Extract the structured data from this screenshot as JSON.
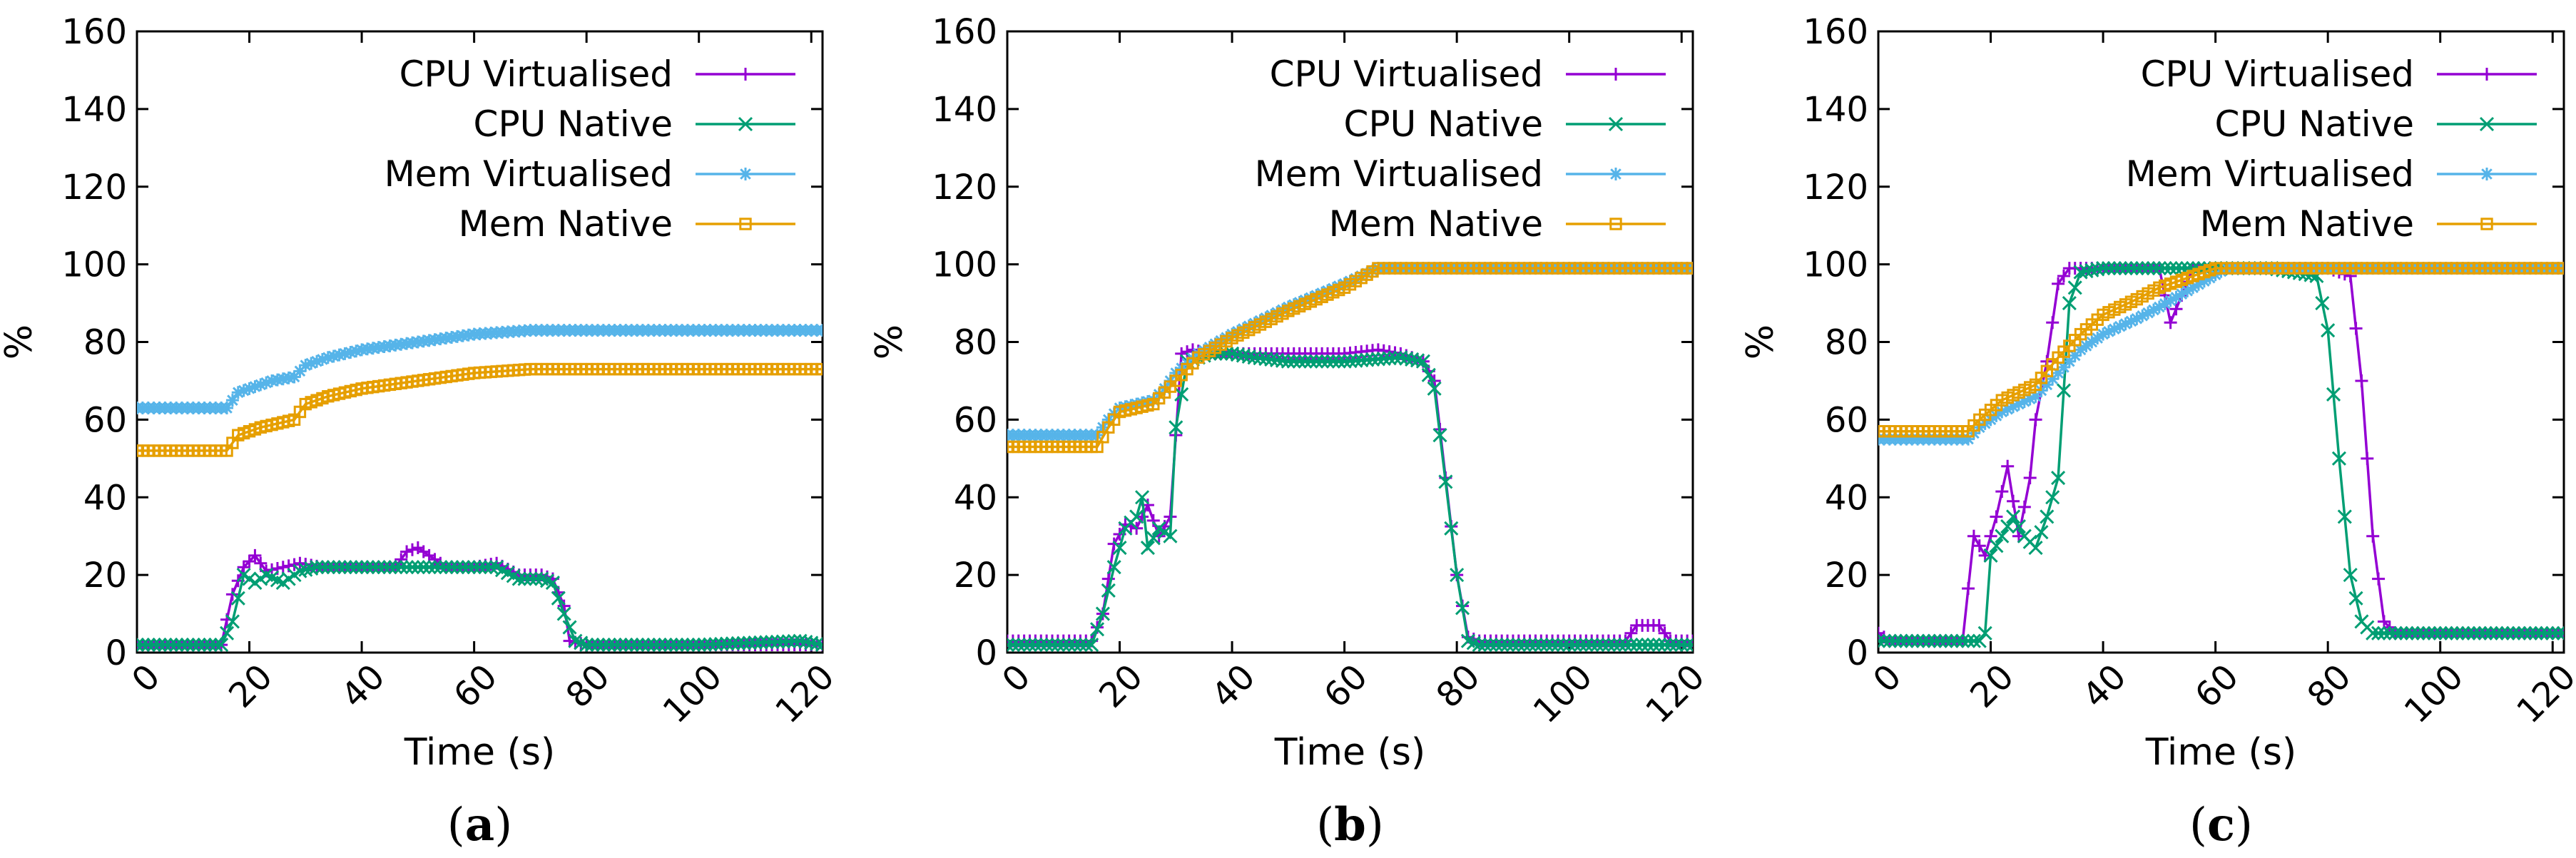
{
  "chart_data": [
    {
      "type": "line",
      "panel_label": "a",
      "xlabel": "Time (s)",
      "ylabel": "%",
      "xlim": [
        0,
        122
      ],
      "ylim": [
        0,
        160
      ],
      "xticks": [
        0,
        20,
        40,
        60,
        80,
        100,
        120
      ],
      "yticks": [
        0,
        20,
        40,
        60,
        80,
        100,
        120,
        140,
        160
      ],
      "legend_position": "top-right",
      "grid": false,
      "series": [
        {
          "name": "CPU Virtualised",
          "color": "#9400d3",
          "marker": "plus",
          "points": [
            [
              0,
              2
            ],
            [
              15,
              2
            ],
            [
              17,
              15
            ],
            [
              19,
              22
            ],
            [
              21,
              25
            ],
            [
              23,
              21
            ],
            [
              26,
              22
            ],
            [
              29,
              23
            ],
            [
              33,
              22
            ],
            [
              40,
              22
            ],
            [
              46,
              22
            ],
            [
              48,
              26
            ],
            [
              50,
              27
            ],
            [
              52,
              25
            ],
            [
              55,
              22
            ],
            [
              60,
              22
            ],
            [
              64,
              23
            ],
            [
              68,
              20
            ],
            [
              72,
              20
            ],
            [
              74,
              19
            ],
            [
              76,
              12
            ],
            [
              77,
              3
            ],
            [
              80,
              2
            ],
            [
              100,
              2
            ],
            [
              122,
              2
            ]
          ]
        },
        {
          "name": "CPU Native",
          "color": "#009e73",
          "marker": "x",
          "points": [
            [
              0,
              2
            ],
            [
              15,
              2
            ],
            [
              17,
              8
            ],
            [
              19,
              20
            ],
            [
              21,
              18
            ],
            [
              23,
              20
            ],
            [
              26,
              18
            ],
            [
              29,
              21
            ],
            [
              32,
              22
            ],
            [
              40,
              22
            ],
            [
              50,
              22
            ],
            [
              60,
              22
            ],
            [
              64,
              22
            ],
            [
              68,
              19
            ],
            [
              72,
              19
            ],
            [
              74,
              18
            ],
            [
              76,
              10
            ],
            [
              78,
              3
            ],
            [
              80,
              2
            ],
            [
              100,
              2
            ],
            [
              118,
              3
            ],
            [
              122,
              2
            ]
          ]
        },
        {
          "name": "Mem Virtualised",
          "color": "#56b4e9",
          "marker": "star",
          "points": [
            [
              0,
              63
            ],
            [
              16,
              63
            ],
            [
              18,
              67
            ],
            [
              24,
              70
            ],
            [
              28,
              71
            ],
            [
              30,
              74
            ],
            [
              34,
              76
            ],
            [
              40,
              78
            ],
            [
              50,
              80
            ],
            [
              60,
              82
            ],
            [
              70,
              83
            ],
            [
              80,
              83
            ],
            [
              100,
              83
            ],
            [
              122,
              83
            ]
          ]
        },
        {
          "name": "Mem Native",
          "color": "#e69f00",
          "marker": "square",
          "points": [
            [
              0,
              52
            ],
            [
              16,
              52
            ],
            [
              18,
              56
            ],
            [
              22,
              58
            ],
            [
              28,
              60
            ],
            [
              30,
              64
            ],
            [
              34,
              66
            ],
            [
              40,
              68
            ],
            [
              50,
              70
            ],
            [
              60,
              72
            ],
            [
              70,
              73
            ],
            [
              80,
              73
            ],
            [
              100,
              73
            ],
            [
              122,
              73
            ]
          ]
        }
      ]
    },
    {
      "type": "line",
      "panel_label": "b",
      "xlabel": "Time (s)",
      "ylabel": "%",
      "xlim": [
        0,
        122
      ],
      "ylim": [
        0,
        160
      ],
      "xticks": [
        0,
        20,
        40,
        60,
        80,
        100,
        120
      ],
      "yticks": [
        0,
        20,
        40,
        60,
        80,
        100,
        120,
        140,
        160
      ],
      "legend_position": "top-right",
      "grid": false,
      "series": [
        {
          "name": "CPU Virtualised",
          "color": "#9400d3",
          "marker": "plus",
          "points": [
            [
              0,
              3
            ],
            [
              15,
              3
            ],
            [
              17,
              10
            ],
            [
              19,
              28
            ],
            [
              21,
              33
            ],
            [
              23,
              32
            ],
            [
              25,
              38
            ],
            [
              27,
              30
            ],
            [
              29,
              35
            ],
            [
              31,
              77
            ],
            [
              33,
              78
            ],
            [
              36,
              77
            ],
            [
              40,
              77
            ],
            [
              50,
              77
            ],
            [
              60,
              77
            ],
            [
              66,
              78
            ],
            [
              70,
              77
            ],
            [
              74,
              75
            ],
            [
              76,
              70
            ],
            [
              78,
              45
            ],
            [
              80,
              20
            ],
            [
              82,
              4
            ],
            [
              84,
              3
            ],
            [
              110,
              3
            ],
            [
              112,
              7
            ],
            [
              116,
              7
            ],
            [
              118,
              3
            ],
            [
              122,
              3
            ]
          ]
        },
        {
          "name": "CPU Native",
          "color": "#009e73",
          "marker": "x",
          "points": [
            [
              0,
              2
            ],
            [
              15,
              2
            ],
            [
              17,
              10
            ],
            [
              19,
              22
            ],
            [
              21,
              32
            ],
            [
              23,
              35
            ],
            [
              24,
              40
            ],
            [
              25,
              27
            ],
            [
              27,
              32
            ],
            [
              29,
              30
            ],
            [
              30,
              58
            ],
            [
              32,
              75
            ],
            [
              36,
              77
            ],
            [
              40,
              77
            ],
            [
              44,
              76
            ],
            [
              50,
              75
            ],
            [
              60,
              75
            ],
            [
              70,
              76
            ],
            [
              74,
              75
            ],
            [
              76,
              68
            ],
            [
              78,
              44
            ],
            [
              80,
              20
            ],
            [
              82,
              3
            ],
            [
              84,
              2
            ],
            [
              100,
              2
            ],
            [
              122,
              2
            ]
          ]
        },
        {
          "name": "Mem Virtualised",
          "color": "#56b4e9",
          "marker": "star",
          "points": [
            [
              0,
              56
            ],
            [
              16,
              56
            ],
            [
              18,
              60
            ],
            [
              20,
              63
            ],
            [
              26,
              65
            ],
            [
              28,
              68
            ],
            [
              30,
              72
            ],
            [
              34,
              77
            ],
            [
              40,
              82
            ],
            [
              50,
              89
            ],
            [
              60,
              95
            ],
            [
              66,
              99
            ],
            [
              70,
              99
            ],
            [
              80,
              99
            ],
            [
              100,
              99
            ],
            [
              122,
              99
            ]
          ]
        },
        {
          "name": "Mem Native",
          "color": "#e69f00",
          "marker": "square",
          "points": [
            [
              0,
              53
            ],
            [
              16,
              53
            ],
            [
              18,
              58
            ],
            [
              20,
              62
            ],
            [
              26,
              64
            ],
            [
              28,
              67
            ],
            [
              30,
              70
            ],
            [
              34,
              76
            ],
            [
              40,
              81
            ],
            [
              50,
              88
            ],
            [
              60,
              94
            ],
            [
              66,
              99
            ],
            [
              70,
              99
            ],
            [
              80,
              99
            ],
            [
              100,
              99
            ],
            [
              122,
              99
            ]
          ]
        }
      ]
    },
    {
      "type": "line",
      "panel_label": "c",
      "xlabel": "Time (s)",
      "ylabel": "%",
      "xlim": [
        0,
        122
      ],
      "ylim": [
        0,
        160
      ],
      "xticks": [
        0,
        20,
        40,
        60,
        80,
        100,
        120
      ],
      "yticks": [
        0,
        20,
        40,
        60,
        80,
        100,
        120,
        140,
        160
      ],
      "legend_position": "top-right",
      "grid": false,
      "series": [
        {
          "name": "CPU Virtualised",
          "color": "#9400d3",
          "marker": "plus",
          "points": [
            [
              0,
              5
            ],
            [
              2,
              3
            ],
            [
              15,
              3
            ],
            [
              17,
              30
            ],
            [
              19,
              25
            ],
            [
              21,
              35
            ],
            [
              23,
              48
            ],
            [
              25,
              30
            ],
            [
              27,
              45
            ],
            [
              28,
              60
            ],
            [
              30,
              75
            ],
            [
              32,
              95
            ],
            [
              34,
              99
            ],
            [
              40,
              99
            ],
            [
              50,
              99
            ],
            [
              52,
              85
            ],
            [
              56,
              99
            ],
            [
              60,
              99
            ],
            [
              70,
              99
            ],
            [
              80,
              99
            ],
            [
              84,
              97
            ],
            [
              86,
              70
            ],
            [
              88,
              30
            ],
            [
              90,
              8
            ],
            [
              92,
              5
            ],
            [
              100,
              5
            ],
            [
              122,
              5
            ]
          ]
        },
        {
          "name": "CPU Native",
          "color": "#009e73",
          "marker": "x",
          "points": [
            [
              0,
              3
            ],
            [
              15,
              3
            ],
            [
              18,
              3
            ],
            [
              19,
              5
            ],
            [
              20,
              25
            ],
            [
              22,
              30
            ],
            [
              24,
              35
            ],
            [
              26,
              30
            ],
            [
              28,
              27
            ],
            [
              30,
              35
            ],
            [
              32,
              45
            ],
            [
              34,
              90
            ],
            [
              36,
              98
            ],
            [
              40,
              99
            ],
            [
              50,
              99
            ],
            [
              60,
              99
            ],
            [
              70,
              99
            ],
            [
              78,
              97
            ],
            [
              80,
              83
            ],
            [
              82,
              50
            ],
            [
              84,
              20
            ],
            [
              86,
              8
            ],
            [
              88,
              5
            ],
            [
              100,
              5
            ],
            [
              122,
              5
            ]
          ]
        },
        {
          "name": "Mem Virtualised",
          "color": "#56b4e9",
          "marker": "star",
          "points": [
            [
              0,
              55
            ],
            [
              16,
              55
            ],
            [
              18,
              58
            ],
            [
              22,
              62
            ],
            [
              28,
              66
            ],
            [
              32,
              72
            ],
            [
              36,
              78
            ],
            [
              40,
              82
            ],
            [
              46,
              86
            ],
            [
              50,
              89
            ],
            [
              56,
              94
            ],
            [
              62,
              99
            ],
            [
              70,
              99
            ],
            [
              80,
              99
            ],
            [
              100,
              99
            ],
            [
              122,
              99
            ]
          ]
        },
        {
          "name": "Mem Native",
          "color": "#e69f00",
          "marker": "square",
          "points": [
            [
              0,
              57
            ],
            [
              16,
              57
            ],
            [
              18,
              60
            ],
            [
              22,
              65
            ],
            [
              28,
              69
            ],
            [
              32,
              76
            ],
            [
              36,
              82
            ],
            [
              40,
              87
            ],
            [
              46,
              91
            ],
            [
              50,
              94
            ],
            [
              56,
              97
            ],
            [
              60,
              99
            ],
            [
              70,
              99
            ],
            [
              80,
              99
            ],
            [
              100,
              99
            ],
            [
              122,
              99
            ]
          ]
        }
      ]
    }
  ]
}
